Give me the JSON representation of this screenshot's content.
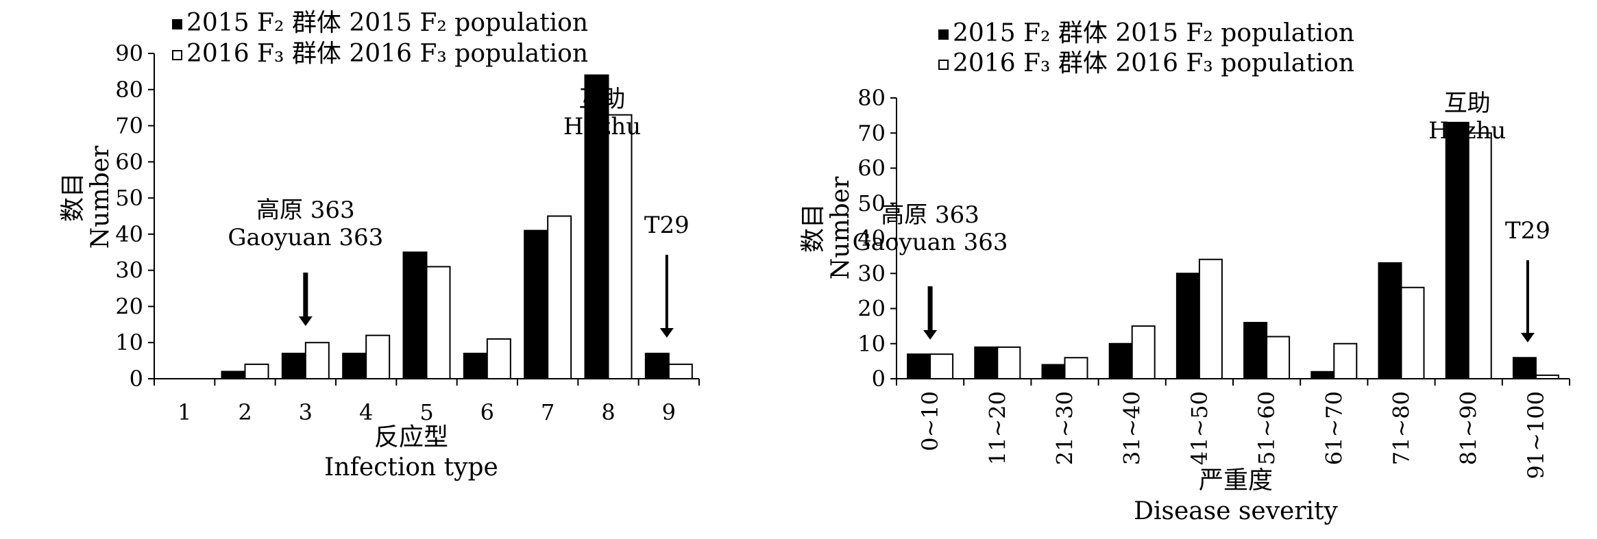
{
  "chart_data": [
    {
      "type": "bar",
      "legend": {
        "placement": "top",
        "entries": [
          "2015 F₂ 群体 2015 F₂ population",
          "2016 F₃ 群体 2016 F₃ population"
        ]
      },
      "xlabel": [
        "反应型",
        "Infection type"
      ],
      "ylabel": [
        "数目",
        "Number"
      ],
      "ylim": [
        0,
        90
      ],
      "yticks": [
        "0",
        "10",
        "20",
        "30",
        "40",
        "50",
        "60",
        "70",
        "80",
        "90"
      ],
      "categories": [
        "1",
        "2",
        "3",
        "4",
        "5",
        "6",
        "7",
        "8",
        "9"
      ],
      "series": [
        {
          "values": [
            0,
            2,
            7,
            7,
            35,
            7,
            41,
            84,
            7
          ],
          "color": "#000000"
        },
        {
          "values": [
            0,
            4,
            10,
            12,
            31,
            11,
            45,
            73,
            4
          ],
          "color": "#ffffff"
        }
      ],
      "annotations": [
        {
          "lines": [
            "高原 363",
            "Gaoyuan 363"
          ],
          "category": "3",
          "arrow": true
        },
        {
          "lines": [
            "互助",
            "Huzhu"
          ],
          "category": "8",
          "arrow": false
        },
        {
          "lines": [
            "T29"
          ],
          "category": "9",
          "arrow": true
        }
      ]
    },
    {
      "type": "bar",
      "legend": {
        "placement": "top",
        "entries": [
          "2015 F₂ 群体 2015 F₂ population",
          "2016 F₃ 群体 2016 F₃ population"
        ]
      },
      "xlabel": [
        "严重度",
        "Disease severity"
      ],
      "ylabel": [
        "数目",
        "Number"
      ],
      "ylim": [
        0,
        80
      ],
      "yticks": [
        "0",
        "10",
        "20",
        "30",
        "40",
        "50",
        "60",
        "70",
        "80"
      ],
      "categories": [
        "0~10",
        "11~20",
        "21~30",
        "31~40",
        "41~50",
        "51~60",
        "61~70",
        "71~80",
        "81~90",
        "91~100"
      ],
      "series": [
        {
          "values": [
            7,
            9,
            4,
            10,
            30,
            16,
            2,
            33,
            73,
            6
          ],
          "color": "#000000"
        },
        {
          "values": [
            7,
            9,
            6,
            15,
            34,
            12,
            10,
            26,
            70,
            1
          ],
          "color": "#ffffff"
        }
      ],
      "annotations": [
        {
          "lines": [
            "高原 363",
            "Gaoyuan 363"
          ],
          "category": "0~10",
          "arrow": true
        },
        {
          "lines": [
            "互助",
            "Huzhu"
          ],
          "category": "81~90",
          "arrow": false
        },
        {
          "lines": [
            "T29"
          ],
          "category": "91~100",
          "arrow": true
        }
      ]
    }
  ]
}
